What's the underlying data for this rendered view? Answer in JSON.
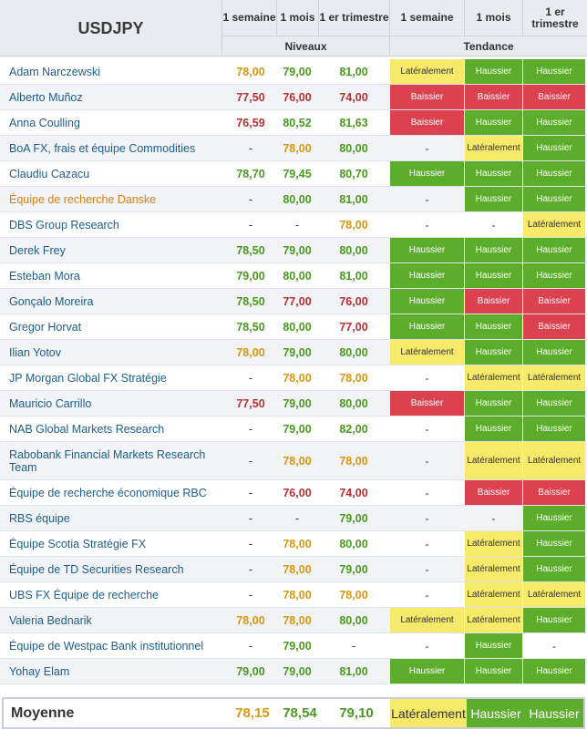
{
  "colors": {
    "up_bg": "#5cad2c",
    "down_bg": "#dc4150",
    "side_bg": "#f7e96a",
    "level_up": "#4a9a1e",
    "level_down": "#b83030",
    "level_side": "#d9960f"
  },
  "header": {
    "pair": "USDJPY",
    "cols": [
      "1 semaine",
      "1 mois",
      "1 er trimestre",
      "1 semaine",
      "1 mois",
      "1 er trimestre"
    ],
    "levels_label": "Niveaux",
    "trend_label": "Tendance"
  },
  "rows": [
    {
      "name": "Adam Narczewski",
      "levels": [
        "78,00",
        "79,00",
        "81,00"
      ],
      "lc": [
        "side",
        "up",
        "up"
      ],
      "trends": [
        "Latéralement",
        "Haussier",
        "Haussier"
      ]
    },
    {
      "name": "Alberto Muñoz",
      "levels": [
        "77,50",
        "76,00",
        "74,00"
      ],
      "lc": [
        "down",
        "down",
        "down"
      ],
      "trends": [
        "Baissier",
        "Baissier",
        "Baissier"
      ]
    },
    {
      "name": "Anna Coulling",
      "levels": [
        "76,59",
        "80,52",
        "81,63"
      ],
      "lc": [
        "down",
        "up",
        "up"
      ],
      "trends": [
        "Baissier",
        "Haussier",
        "Haussier"
      ]
    },
    {
      "name": "BoA FX, frais et équipe Commodities",
      "levels": [
        "-",
        "78,00",
        "80,00"
      ],
      "lc": [
        "none",
        "side",
        "up"
      ],
      "trends": [
        "-",
        "Latéralement",
        "Haussier"
      ]
    },
    {
      "name": "Claudiu Cazacu",
      "levels": [
        "78,70",
        "79,45",
        "80,70"
      ],
      "lc": [
        "up",
        "up",
        "up"
      ],
      "trends": [
        "Haussier",
        "Haussier",
        "Haussier"
      ]
    },
    {
      "name": "Équipe de recherche Danske",
      "orange": true,
      "levels": [
        "-",
        "80,00",
        "81,00"
      ],
      "lc": [
        "none",
        "up",
        "up"
      ],
      "trends": [
        "-",
        "Haussier",
        "Haussier"
      ]
    },
    {
      "name": "DBS Group Research",
      "levels": [
        "-",
        "-",
        "78,00"
      ],
      "lc": [
        "none",
        "none",
        "side"
      ],
      "trends": [
        "-",
        "-",
        "Latéralement"
      ]
    },
    {
      "name": "Derek Frey",
      "levels": [
        "78,50",
        "79,00",
        "80,00"
      ],
      "lc": [
        "up",
        "up",
        "up"
      ],
      "trends": [
        "Haussier",
        "Haussier",
        "Haussier"
      ]
    },
    {
      "name": "Esteban Mora",
      "levels": [
        "79,00",
        "80,00",
        "81,00"
      ],
      "lc": [
        "up",
        "up",
        "up"
      ],
      "trends": [
        "Haussier",
        "Haussier",
        "Haussier"
      ]
    },
    {
      "name": "Gonçalo Moreira",
      "levels": [
        "78,50",
        "77,00",
        "76,00"
      ],
      "lc": [
        "up",
        "down",
        "down"
      ],
      "trends": [
        "Haussier",
        "Baissier",
        "Baissier"
      ]
    },
    {
      "name": "Gregor Horvat",
      "levels": [
        "78,50",
        "80,00",
        "77,00"
      ],
      "lc": [
        "up",
        "up",
        "down"
      ],
      "trends": [
        "Haussier",
        "Haussier",
        "Baissier"
      ]
    },
    {
      "name": "Ilian Yotov",
      "levels": [
        "78,00",
        "79,00",
        "80,00"
      ],
      "lc": [
        "side",
        "up",
        "up"
      ],
      "trends": [
        "Latéralement",
        "Haussier",
        "Haussier"
      ]
    },
    {
      "name": "JP Morgan Global FX Stratégie",
      "levels": [
        "-",
        "78,00",
        "78,00"
      ],
      "lc": [
        "none",
        "side",
        "side"
      ],
      "trends": [
        "-",
        "Latéralement",
        "Latéralement"
      ]
    },
    {
      "name": "Mauricio Carrillo",
      "levels": [
        "77,50",
        "79,00",
        "80,00"
      ],
      "lc": [
        "down",
        "up",
        "up"
      ],
      "trends": [
        "Baissier",
        "Haussier",
        "Haussier"
      ]
    },
    {
      "name": "NAB Global Markets Research",
      "levels": [
        "-",
        "79,00",
        "82,00"
      ],
      "lc": [
        "none",
        "up",
        "up"
      ],
      "trends": [
        "-",
        "Haussier",
        "Haussier"
      ]
    },
    {
      "name": "Rabobank Financial Markets Research Team",
      "tall": true,
      "levels": [
        "-",
        "78,00",
        "78,00"
      ],
      "lc": [
        "none",
        "side",
        "side"
      ],
      "trends": [
        "-",
        "Latéralement",
        "Latéralement"
      ]
    },
    {
      "name": "Équipe de recherche économique RBC",
      "levels": [
        "-",
        "76,00",
        "74,00"
      ],
      "lc": [
        "none",
        "down",
        "down"
      ],
      "trends": [
        "-",
        "Baissier",
        "Baissier"
      ]
    },
    {
      "name": "RBS équipe",
      "levels": [
        "-",
        "-",
        "79,00"
      ],
      "lc": [
        "none",
        "none",
        "up"
      ],
      "trends": [
        "-",
        "-",
        "Haussier"
      ]
    },
    {
      "name": "Équipe Scotia Stratégie FX",
      "levels": [
        "-",
        "78,00",
        "80,00"
      ],
      "lc": [
        "none",
        "side",
        "up"
      ],
      "trends": [
        "-",
        "Latéralement",
        "Haussier"
      ]
    },
    {
      "name": "Équipe de TD Securities Research",
      "levels": [
        "-",
        "78,00",
        "79,00"
      ],
      "lc": [
        "none",
        "side",
        "up"
      ],
      "trends": [
        "-",
        "Latéralement",
        "Haussier"
      ]
    },
    {
      "name": "UBS FX Équipe de recherche",
      "levels": [
        "-",
        "78,00",
        "78,00"
      ],
      "lc": [
        "none",
        "side",
        "side"
      ],
      "trends": [
        "-",
        "Latéralement",
        "Latéralement"
      ]
    },
    {
      "name": "Valeria Bednarik",
      "levels": [
        "78,00",
        "78,00",
        "80,00"
      ],
      "lc": [
        "side",
        "side",
        "up"
      ],
      "trends": [
        "Latéralement",
        "Latéralement",
        "Haussier"
      ]
    },
    {
      "name": "Équipe de Westpac Bank institutionnel",
      "levels": [
        "-",
        "79,00",
        "-"
      ],
      "lc": [
        "none",
        "up",
        "none"
      ],
      "trends": [
        "-",
        "Haussier",
        "-"
      ]
    },
    {
      "name": "Yohay Elam",
      "levels": [
        "79,00",
        "79,00",
        "81,00"
      ],
      "lc": [
        "up",
        "up",
        "up"
      ],
      "trends": [
        "Haussier",
        "Haussier",
        "Haussier"
      ]
    }
  ],
  "average": {
    "label": "Moyenne",
    "levels": [
      "78,15",
      "78,54",
      "79,10"
    ],
    "lc": [
      "side",
      "up",
      "up"
    ],
    "trends": [
      "Latéralement",
      "Haussier",
      "Haussier"
    ]
  }
}
